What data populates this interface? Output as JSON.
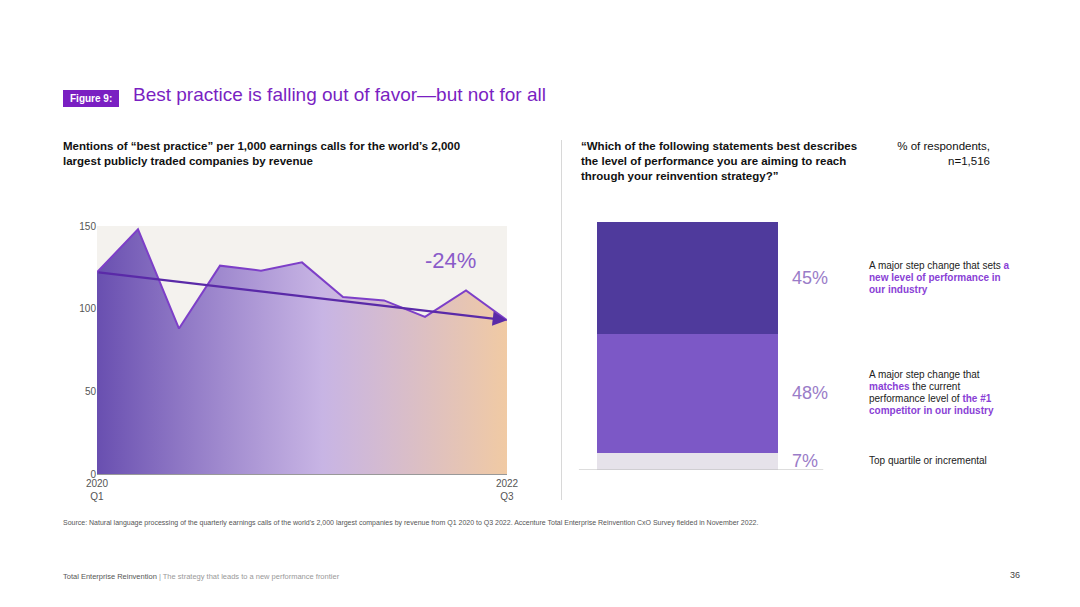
{
  "header": {
    "figure_label": "Figure 9:",
    "title": "Best practice is falling out of favor—but not for all"
  },
  "chart_data": [
    {
      "type": "area",
      "title": "Mentions of “best practice” per 1,000 earnings calls for the world’s 2,000 largest publicly traded companies by revenue",
      "categories": [
        "2020 Q1",
        null,
        null,
        null,
        null,
        null,
        null,
        null,
        null,
        null,
        "2022 Q3"
      ],
      "values": [
        122,
        148,
        88,
        126,
        123,
        128,
        107,
        105,
        95,
        111,
        93
      ],
      "color": "#7d3fc8",
      "ylim": [
        0,
        150
      ],
      "yticks": [
        0,
        50,
        100,
        150
      ],
      "grid": false,
      "annotations": [
        {
          "text": "-24%"
        }
      ]
    },
    {
      "type": "bar",
      "title": "“Which of the following statements best describes the level of performance you are aiming to reach through your reinvention strategy?”",
      "subtitle": "% of respondents, n=1,516",
      "stacked": true,
      "data_labels": true,
      "tick_labels": false,
      "grid": false,
      "categories": [
        null
      ],
      "ylim": [
        0,
        100
      ],
      "series": [
        {
          "name": "Top quartile or incremental",
          "values": [
            7
          ],
          "value_labels": [
            "7%"
          ],
          "color": "#e6e2ea",
          "highlights": []
        },
        {
          "name": "A major step change that matches the current performance level of the #1 competitor in our industry",
          "values": [
            48
          ],
          "value_labels": [
            "48%"
          ],
          "color": "#7c58c6",
          "highlights": [
            "matches",
            "the #1 competitor in our industry"
          ]
        },
        {
          "name": "A major step change that sets a new level of performance in our industry",
          "values": [
            45
          ],
          "value_labels": [
            "45%"
          ],
          "color": "#4f3a9c",
          "highlights": [
            "a new level of performance in our industry"
          ]
        }
      ]
    }
  ],
  "source": "Source: Natural language processing of the quarterly earnings calls of the world's 2,000 largest companies by revenue from Q1 2020 to Q3 2022. Accenture Total Enterprise Reinvention CxO Survey fielded in November 2022.",
  "footer": {
    "title": "Total Enterprise Reinvention",
    "separator": "|",
    "subtitle": "The strategy that leads to a new performance frontier",
    "page": "36"
  }
}
